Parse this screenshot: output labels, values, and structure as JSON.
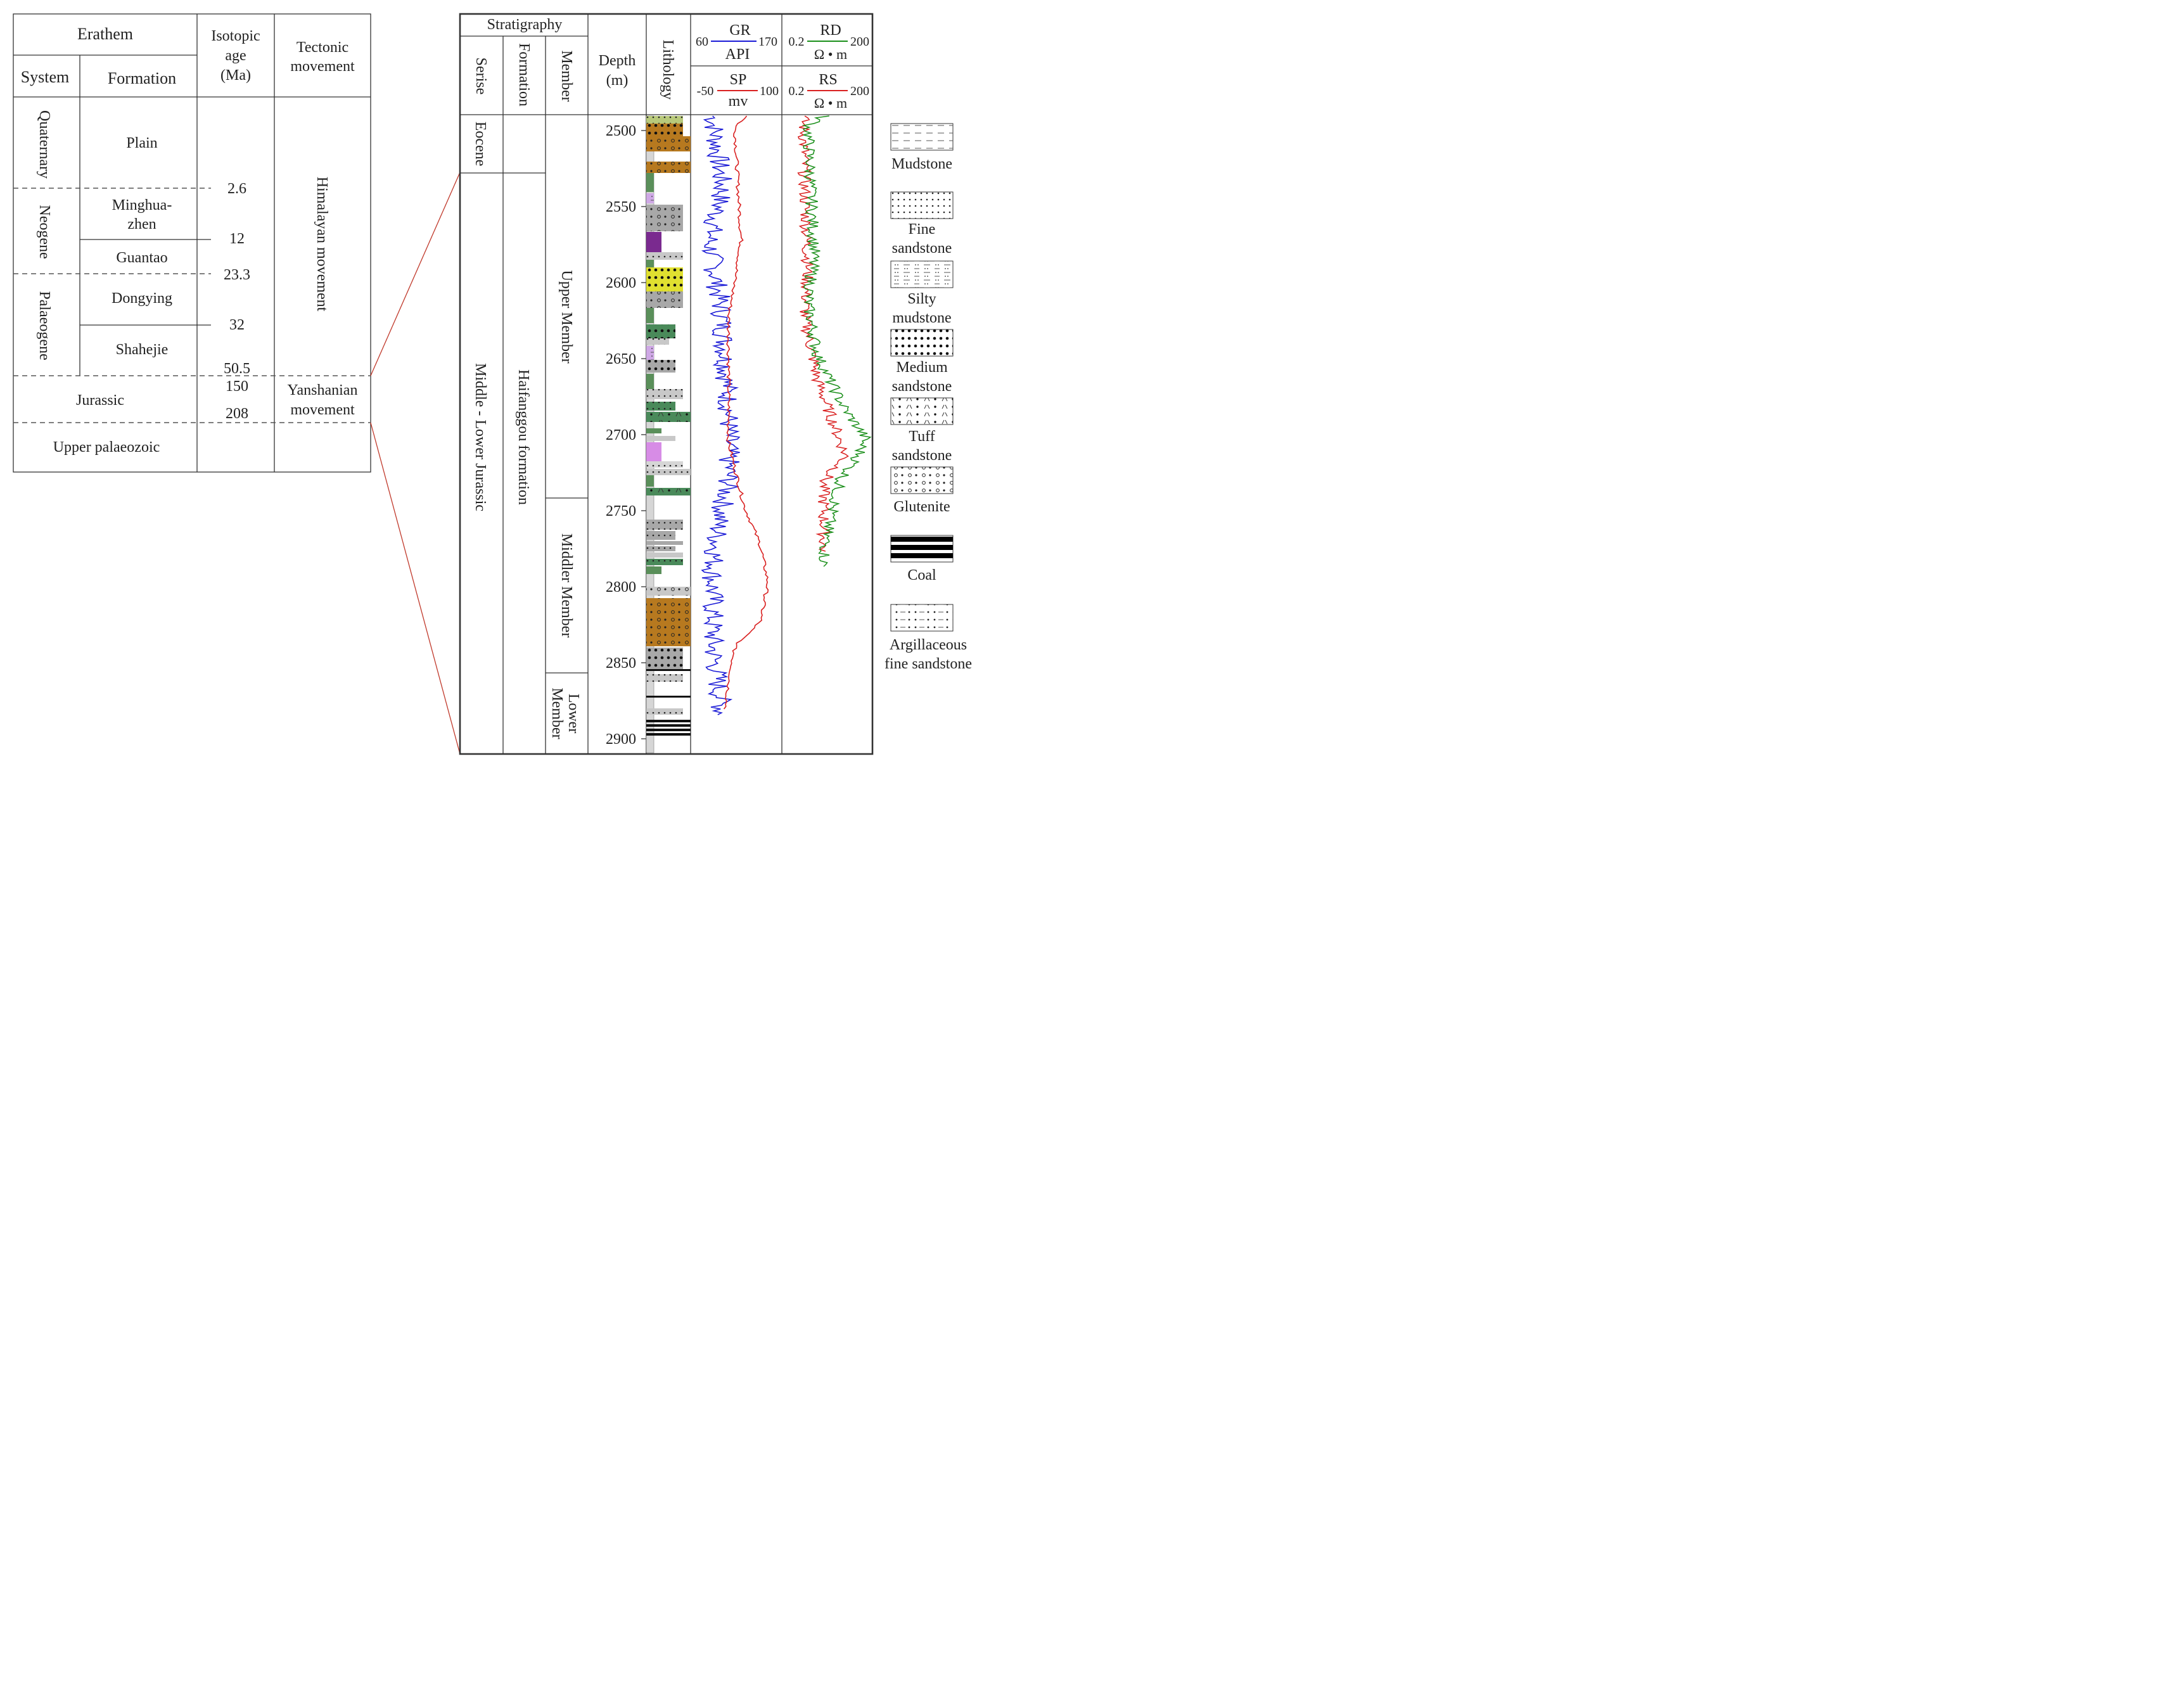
{
  "left_table": {
    "headers": {
      "erathem": "Erathem",
      "system": "System",
      "formation": "Formation",
      "isotopic_age": [
        "Isotopic",
        "age",
        "(Ma)"
      ],
      "tectonic": [
        "Tectonic",
        "movement"
      ]
    },
    "systems": {
      "quaternary": "Quaternary",
      "neogene": "Neogene",
      "palaeogene": "Palaeogene"
    },
    "formations": {
      "plain": "Plain",
      "minghuazhen": [
        "Minghua-",
        "zhen"
      ],
      "guantao": "Guantao",
      "dongying": "Dongying",
      "shahejie": "Shahejie",
      "jurassic": "Jurassic",
      "upper_palaeozoic": "Upper palaeozoic"
    },
    "ages": [
      "2.6",
      "12",
      "23.3",
      "32",
      "50.5",
      "150",
      "208"
    ],
    "tectonic_movements": {
      "himalayan": "Himalayan movement",
      "yanshanian": [
        "Yanshanian",
        "movement"
      ]
    }
  },
  "log_column": {
    "stratigraphy": "Stratigraphy",
    "col_serise": "Serise",
    "col_formation": "Formation",
    "col_member": "Member",
    "col_depth": [
      "Depth",
      "(m)"
    ],
    "col_lithology": "Lithology",
    "series": {
      "eocene": "Eocene",
      "middle_lower_jurassic": "Middle - Lower Jurassic"
    },
    "formation_name": "Haifanggou formation",
    "members": {
      "upper": "Upper Member",
      "middle": "Middler Member",
      "lower": [
        "Lower",
        "Member"
      ]
    },
    "depth_ticks": [
      "2500",
      "2550",
      "2600",
      "2650",
      "2700",
      "2750",
      "2800",
      "2850",
      "2900"
    ],
    "gr_header": {
      "name": "GR",
      "unit": "API",
      "min": "60",
      "max": "170"
    },
    "sp_header": {
      "name": "SP",
      "unit": "mv",
      "min": "-50",
      "max": "100"
    },
    "rd_header": {
      "name": "RD",
      "unit": "Ω • m",
      "min": "0.2",
      "max": "200"
    },
    "rs_header": {
      "name": "RS",
      "unit": "Ω • m",
      "min": "0.2",
      "max": "200"
    }
  },
  "legend": {
    "mudstone": "Mudstone",
    "fine_sandstone": [
      "Fine",
      "sandstone"
    ],
    "silty_mudstone": [
      "Silty",
      "mudstone"
    ],
    "medium_sandstone": [
      "Medium",
      "sandstone"
    ],
    "tuff_sandstone": [
      "Tuff",
      "sandstone"
    ],
    "glutenite": "Glutenite",
    "coal": "Coal",
    "argillaceous_fine_sandstone": [
      "Argillaceous",
      "fine sandstone"
    ]
  },
  "colors": {
    "gr": "#1a1ad6",
    "sp": "#d92020",
    "rd": "#d92020",
    "rs": "#1a8f1a",
    "connector": "#c0392b"
  }
}
